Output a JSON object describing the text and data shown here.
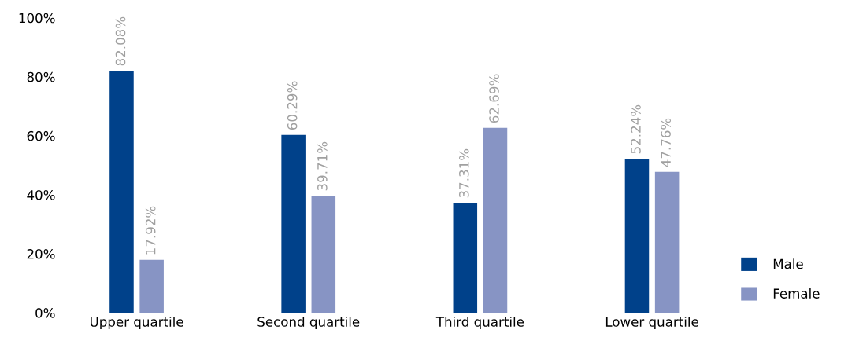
{
  "chart_data": {
    "type": "bar",
    "categories": [
      "Upper quartile",
      "Second quartile",
      "Third quartile",
      "Lower quartile"
    ],
    "series": [
      {
        "name": "Male",
        "color": "#00418a",
        "values": [
          82.08,
          60.29,
          37.31,
          52.24
        ],
        "value_labels": [
          "82.08%",
          "60.29%",
          "37.31%",
          "52.24%"
        ]
      },
      {
        "name": "Female",
        "color": "#8794c4",
        "values": [
          17.92,
          39.71,
          62.69,
          47.76
        ],
        "value_labels": [
          "17.92%",
          "39.71%",
          "62.69%",
          "47.76%"
        ]
      }
    ],
    "ylim": [
      0,
      100
    ],
    "yticks": [
      {
        "value": 0,
        "label": "0%"
      },
      {
        "value": 20,
        "label": "20%"
      },
      {
        "value": 40,
        "label": "40%"
      },
      {
        "value": 60,
        "label": "60%"
      },
      {
        "value": 80,
        "label": "80%"
      },
      {
        "value": 100,
        "label": "100%"
      }
    ],
    "grid": false,
    "legend": "bottom right"
  }
}
